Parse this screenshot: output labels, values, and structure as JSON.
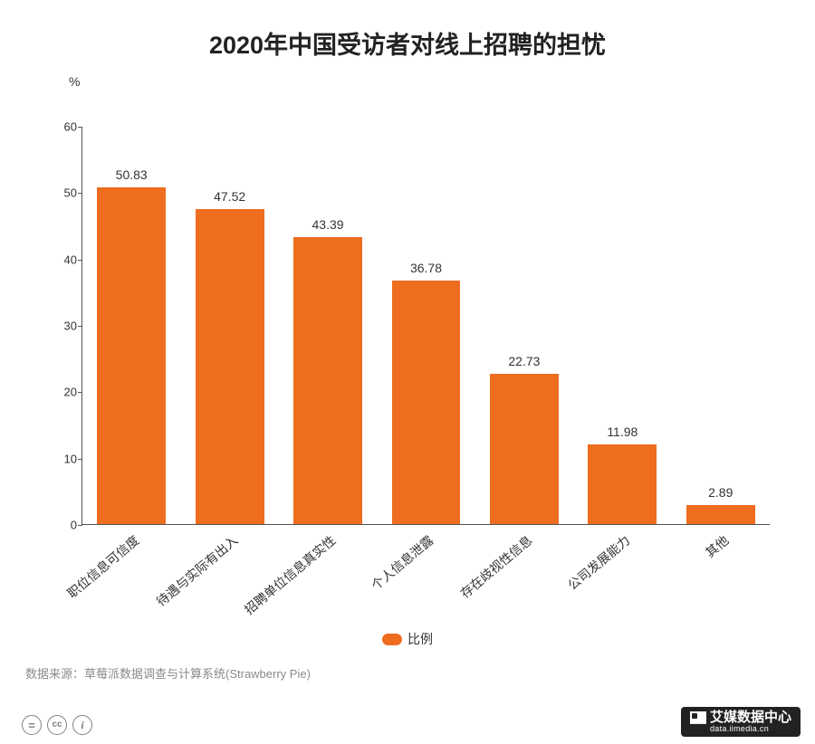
{
  "title": {
    "text": "2020年中国受访者对线上招聘的担忧",
    "fontsize": 27,
    "color": "#222222"
  },
  "chart": {
    "type": "bar",
    "y_unit": "%",
    "ylim": [
      0,
      60
    ],
    "ytick_step": 10,
    "yticks": [
      0,
      10,
      20,
      30,
      40,
      50,
      60
    ],
    "axis_color": "#555555",
    "tick_fontsize": 13,
    "tick_color": "#333333",
    "bar_color": "#ee6d1f",
    "bar_width_pct": 70,
    "value_label_fontsize": 14,
    "value_label_color": "#333333",
    "xlabel_fontsize": 14,
    "xlabel_rotation_deg": -40,
    "categories": [
      "职位信息可信度",
      "待遇与实际有出入",
      "招聘单位信息真实性",
      "个人信息泄露",
      "存在歧视性信息",
      "公司发展能力",
      "其他"
    ],
    "values": [
      50.83,
      47.52,
      43.39,
      36.78,
      22.73,
      11.98,
      2.89
    ],
    "background_color": "#ffffff"
  },
  "legend": {
    "label": "比例",
    "swatch_color": "#ee6d1f",
    "fontsize": 14
  },
  "source": {
    "text": "数据来源：草莓派数据调查与计算系统(Strawberry Pie)",
    "color": "#8a8a8a",
    "fontsize": 13
  },
  "cc_icons": {
    "color": "#808080",
    "labels": [
      "=",
      "cc",
      "i"
    ]
  },
  "watermark": {
    "brand": "艾媒数据中心",
    "url": "data.iimedia.cn",
    "bg": "#222222",
    "fg": "#ffffff"
  }
}
